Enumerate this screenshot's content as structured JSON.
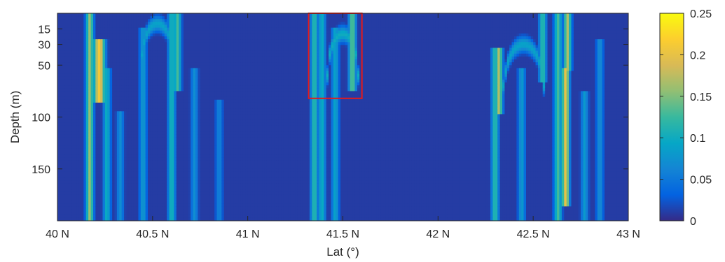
{
  "chart_data": {
    "type": "heatmap",
    "title": "",
    "xlabel": "Lat (°)",
    "ylabel": "Depth (m)",
    "xlim": [
      40,
      43
    ],
    "ylim": [
      0,
      200
    ],
    "y_reversed": true,
    "grid": false,
    "x_ticks": [
      {
        "value": 40,
        "label": "40 N"
      },
      {
        "value": 40.5,
        "label": "40.5 N"
      },
      {
        "value": 41,
        "label": "41 N"
      },
      {
        "value": 41.5,
        "label": "41.5 N"
      },
      {
        "value": 42,
        "label": "42 N"
      },
      {
        "value": 42.5,
        "label": "42.5 N"
      },
      {
        "value": 43,
        "label": "43 N"
      }
    ],
    "y_ticks": [
      {
        "value": 15,
        "label": "15"
      },
      {
        "value": 30,
        "label": "30"
      },
      {
        "value": 50,
        "label": "50"
      },
      {
        "value": 100,
        "label": "100"
      },
      {
        "value": 150,
        "label": "150"
      }
    ],
    "colorbar": {
      "range": [
        0,
        0.25
      ],
      "colormap": "parula",
      "colors": [
        "#352a87",
        "#0363e1",
        "#1485d4",
        "#06a7c6",
        "#38b99e",
        "#92bf73",
        "#d9ba56",
        "#fcce2e",
        "#f9fb0e"
      ],
      "ticks": [
        {
          "value": 0,
          "label": "0"
        },
        {
          "value": 0.05,
          "label": "0.05"
        },
        {
          "value": 0.1,
          "label": "0.1"
        },
        {
          "value": 0.15,
          "label": "0.15"
        },
        {
          "value": 0.2,
          "label": "0.2"
        },
        {
          "value": 0.25,
          "label": "0.25"
        }
      ]
    },
    "background_value": 0.01,
    "features": [
      {
        "kind": "plume",
        "lat": 40.17,
        "depth": [
          0,
          200
        ],
        "width": 0.02,
        "value": 0.16
      },
      {
        "kind": "plume",
        "lat": 40.22,
        "depth": [
          30,
          80
        ],
        "width": 0.03,
        "value": 0.21
      },
      {
        "kind": "plume",
        "lat": 40.26,
        "depth": [
          60,
          200
        ],
        "width": 0.02,
        "value": 0.1
      },
      {
        "kind": "plume",
        "lat": 40.33,
        "depth": [
          100,
          200
        ],
        "width": 0.02,
        "value": 0.07
      },
      {
        "kind": "arc",
        "lat": [
          40.45,
          40.6
        ],
        "depth": [
          10,
          40
        ],
        "width": 0.02,
        "value": 0.09
      },
      {
        "kind": "plume",
        "lat": 40.45,
        "depth": [
          20,
          200
        ],
        "width": 0.02,
        "value": 0.08
      },
      {
        "kind": "plume",
        "lat": 40.6,
        "depth": [
          0,
          200
        ],
        "width": 0.02,
        "value": 0.11
      },
      {
        "kind": "plume",
        "lat": 40.63,
        "depth": [
          0,
          70
        ],
        "width": 0.02,
        "value": 0.13
      },
      {
        "kind": "plume",
        "lat": 40.72,
        "depth": [
          60,
          200
        ],
        "width": 0.02,
        "value": 0.07
      },
      {
        "kind": "plume",
        "lat": 40.85,
        "depth": [
          90,
          200
        ],
        "width": 0.02,
        "value": 0.06
      },
      {
        "kind": "plume",
        "lat": 41.35,
        "depth": [
          0,
          200
        ],
        "width": 0.02,
        "value": 0.12
      },
      {
        "kind": "plume",
        "lat": 41.39,
        "depth": [
          0,
          200
        ],
        "width": 0.02,
        "value": 0.1
      },
      {
        "kind": "plume",
        "lat": 41.46,
        "depth": [
          20,
          200
        ],
        "width": 0.02,
        "value": 0.09
      },
      {
        "kind": "plume",
        "lat": 41.55,
        "depth": [
          0,
          70
        ],
        "width": 0.02,
        "value": 0.14
      },
      {
        "kind": "arc",
        "lat": [
          41.42,
          41.58
        ],
        "depth": [
          20,
          60
        ],
        "width": 0.02,
        "value": 0.1
      },
      {
        "kind": "plume",
        "lat": 42.3,
        "depth": [
          40,
          200
        ],
        "width": 0.02,
        "value": 0.12
      },
      {
        "kind": "plume",
        "lat": 42.32,
        "depth": [
          40,
          90
        ],
        "width": 0.02,
        "value": 0.17
      },
      {
        "kind": "arc",
        "lat": [
          42.35,
          42.55
        ],
        "depth": [
          30,
          70
        ],
        "width": 0.02,
        "value": 0.09
      },
      {
        "kind": "plume",
        "lat": 42.44,
        "depth": [
          60,
          200
        ],
        "width": 0.02,
        "value": 0.08
      },
      {
        "kind": "plume",
        "lat": 42.55,
        "depth": [
          0,
          60
        ],
        "width": 0.02,
        "value": 0.12
      },
      {
        "kind": "plume",
        "lat": 42.63,
        "depth": [
          0,
          200
        ],
        "width": 0.02,
        "value": 0.13
      },
      {
        "kind": "plume",
        "lat": 42.67,
        "depth": [
          60,
          180
        ],
        "width": 0.02,
        "value": 0.2
      },
      {
        "kind": "plume",
        "lat": 42.68,
        "depth": [
          0,
          50
        ],
        "width": 0.02,
        "value": 0.17
      },
      {
        "kind": "plume",
        "lat": 42.77,
        "depth": [
          80,
          200
        ],
        "width": 0.02,
        "value": 0.08
      },
      {
        "kind": "plume",
        "lat": 42.85,
        "depth": [
          30,
          200
        ],
        "width": 0.02,
        "value": 0.07
      }
    ],
    "annotations": [
      {
        "kind": "rectangle",
        "color": "#e41a1c",
        "x": [
          41.32,
          41.6
        ],
        "depth": [
          0,
          82
        ]
      }
    ]
  }
}
